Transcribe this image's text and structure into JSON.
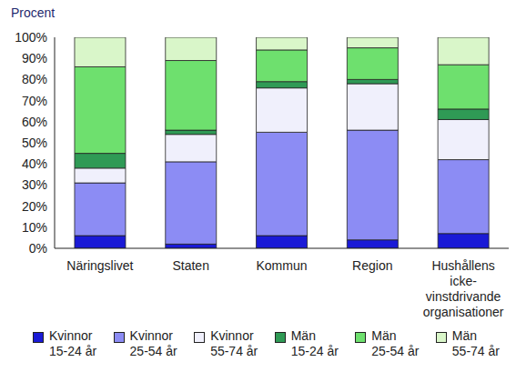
{
  "chart_data": {
    "type": "bar",
    "stacked": true,
    "grid": false,
    "legend": "bottom",
    "data_labels": false,
    "ylabel": "Procent",
    "categories": [
      "Näringslivet",
      "Staten",
      "Kommun",
      "Region",
      "Hushållens icke-vinstdrivande organisationer"
    ],
    "series": [
      {
        "name": "Kvinnor 15-24 år",
        "color": "#1a1ad6",
        "values": [
          6,
          2,
          6,
          4,
          7
        ]
      },
      {
        "name": "Kvinnor 25-54 år",
        "color": "#8c8cf4",
        "values": [
          25,
          39,
          49,
          52,
          35
        ]
      },
      {
        "name": "Kvinnor 55-74 år",
        "color": "#f0f0fc",
        "values": [
          7,
          13,
          21,
          22,
          19
        ]
      },
      {
        "name": "Män 15-24 år",
        "color": "#2f9a55",
        "values": [
          7,
          2,
          3,
          2,
          5
        ]
      },
      {
        "name": "Män 25-54 år",
        "color": "#6ee06e",
        "values": [
          41,
          33,
          15,
          15,
          21
        ]
      },
      {
        "name": "Män 55-74 år",
        "color": "#d9f6c9",
        "values": [
          14,
          11,
          6,
          5,
          13
        ]
      }
    ],
    "ylim": [
      0,
      100
    ],
    "yticks": [
      {
        "value": 0,
        "label": "0%"
      },
      {
        "value": 10,
        "label": "10%"
      },
      {
        "value": 20,
        "label": "20%"
      },
      {
        "value": 30,
        "label": "30%"
      },
      {
        "value": 40,
        "label": "40%"
      },
      {
        "value": 50,
        "label": "50%"
      },
      {
        "value": 60,
        "label": "60%"
      },
      {
        "value": 70,
        "label": "70%"
      },
      {
        "value": 80,
        "label": "80%"
      },
      {
        "value": 90,
        "label": "90%"
      },
      {
        "value": 100,
        "label": "100%"
      }
    ]
  }
}
